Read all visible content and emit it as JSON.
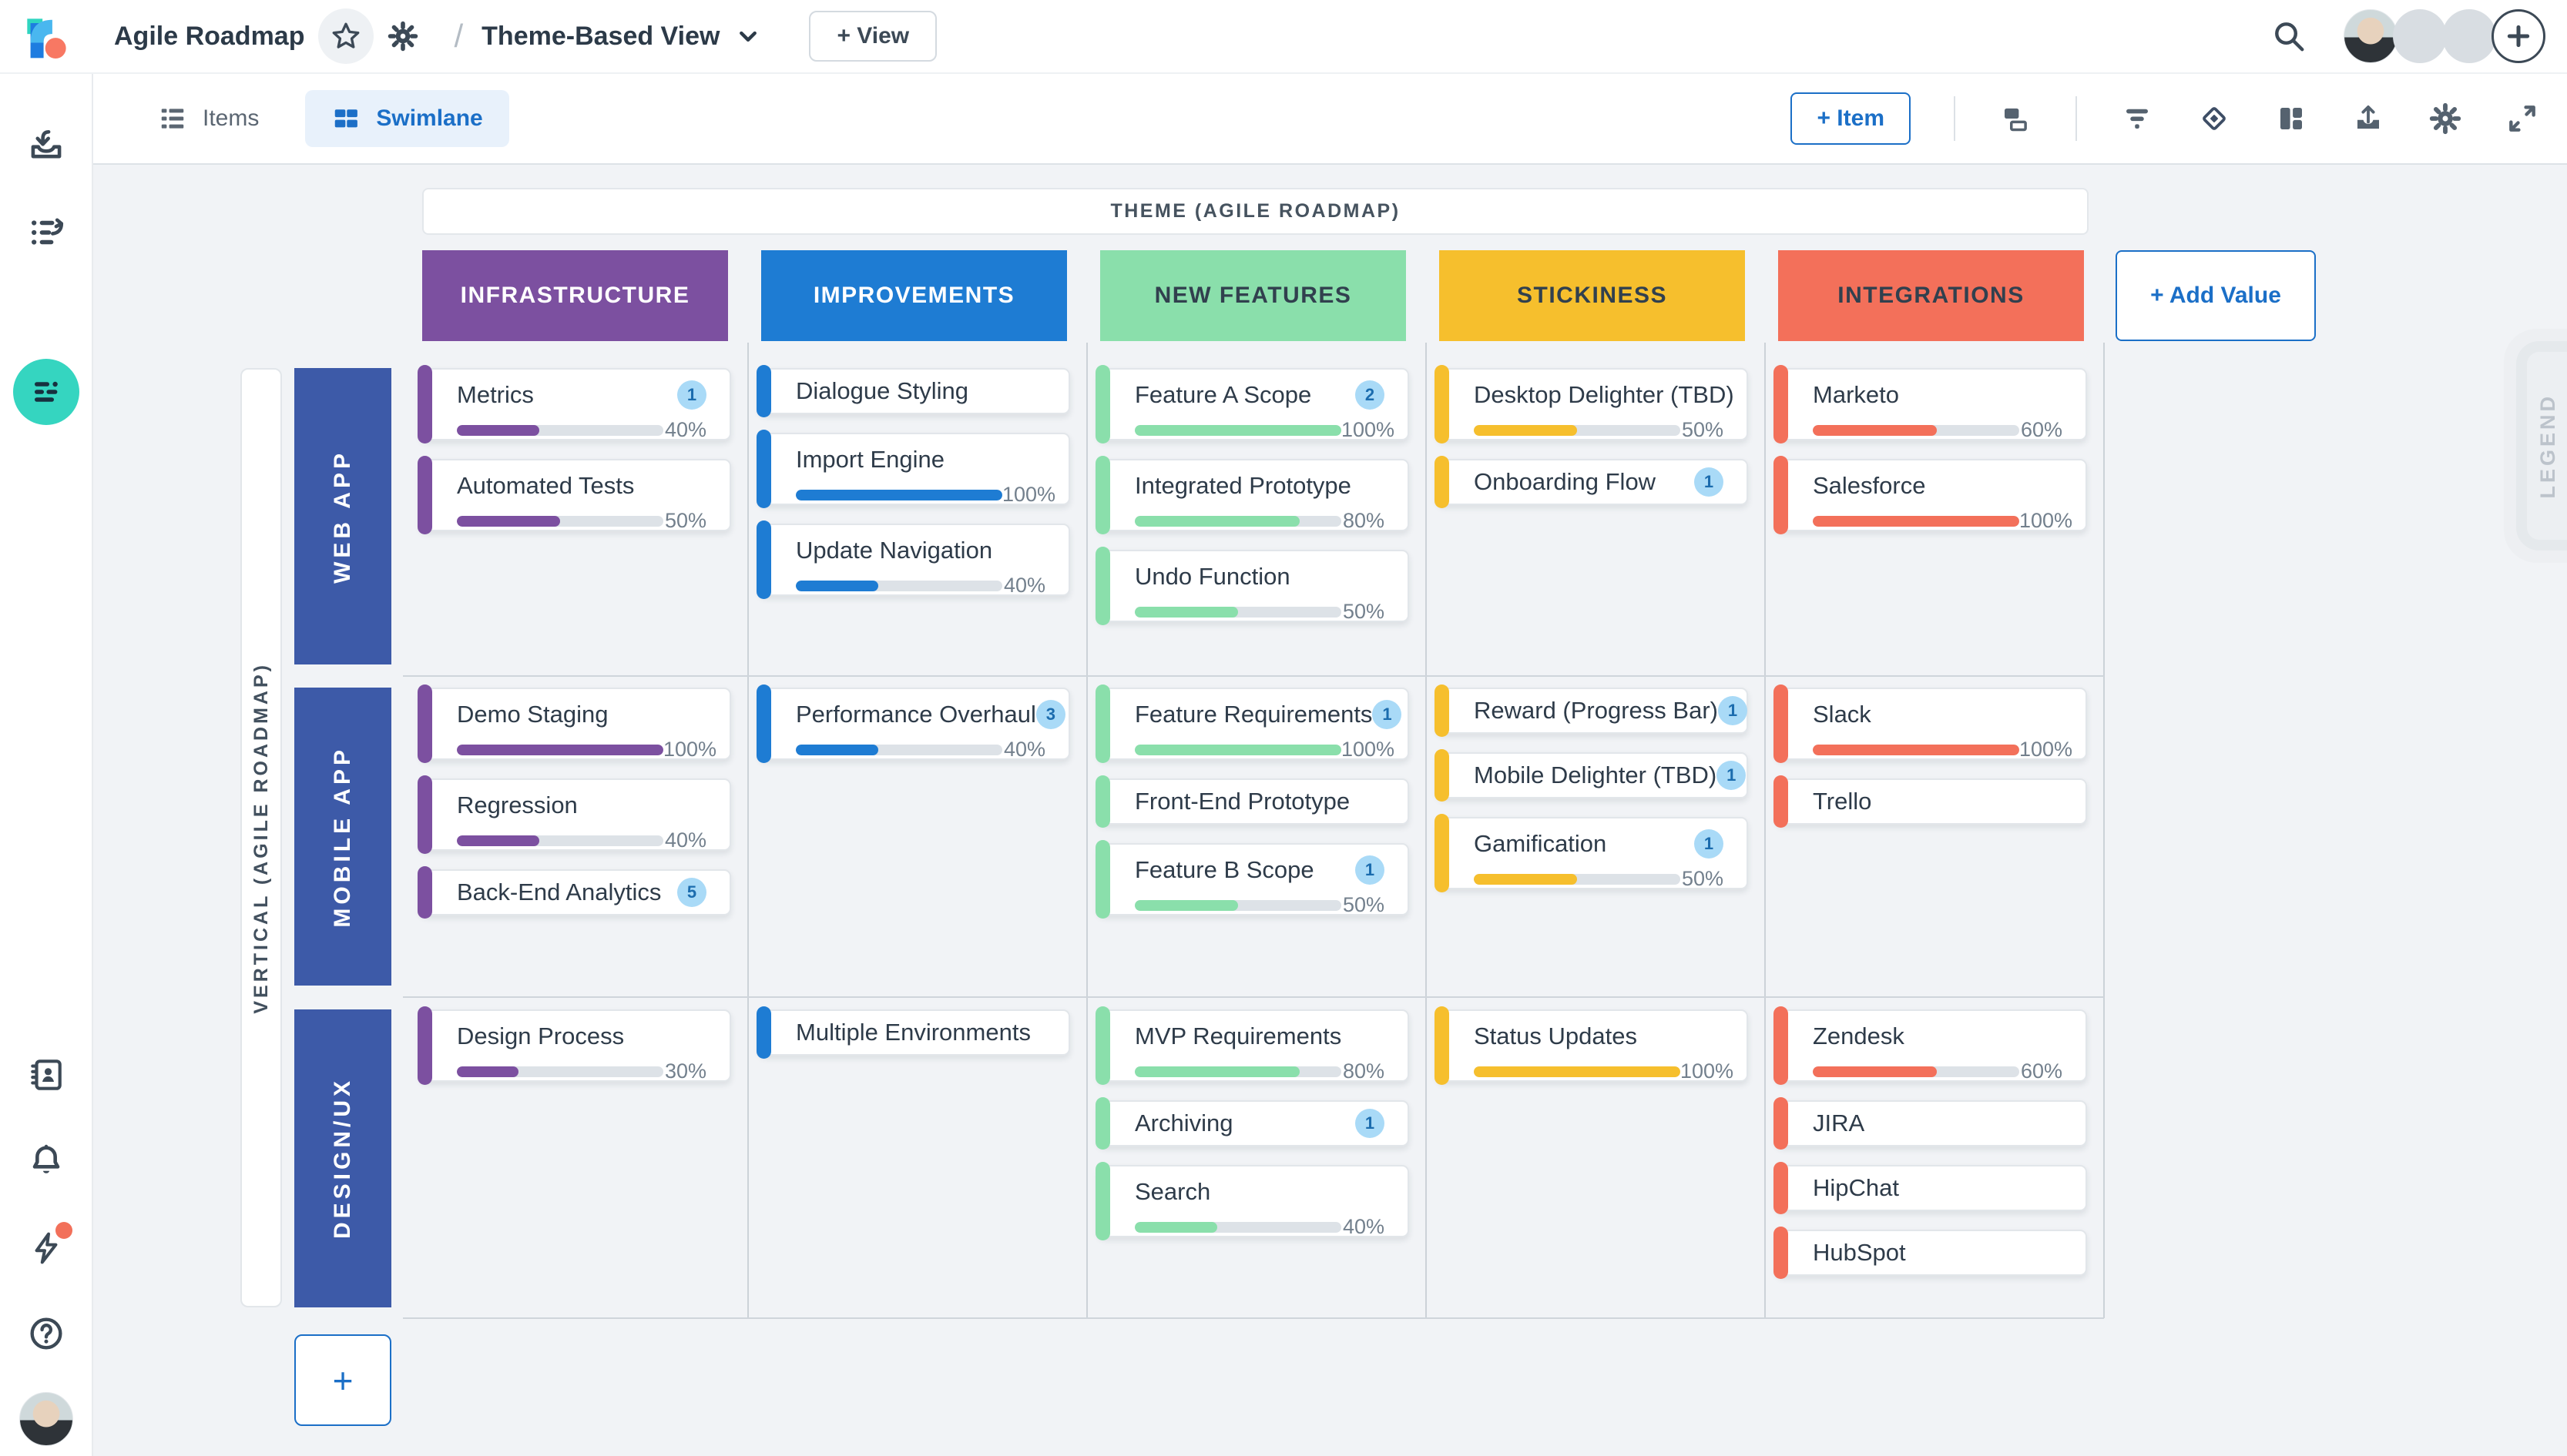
{
  "header": {
    "roadmap_title": "Agile Roadmap",
    "separator": "/",
    "view_name": "Theme-Based View",
    "add_view_label": "+ View",
    "icons": [
      "favorite-star-icon",
      "roadmap-settings-gear-icon",
      "chevron-down-icon",
      "search-icon",
      "add-collaborator-plus-icon"
    ],
    "avatar_group": {
      "photo_avatars": 1,
      "empty_avatars": 2,
      "add_label": "+"
    }
  },
  "sidebar": {
    "icons": [
      {
        "name": "import-icon",
        "active": false
      },
      {
        "name": "history-list-icon",
        "active": false
      },
      {
        "name": "swimlane-view-icon",
        "active": true,
        "active_bg": "#35d5c0"
      },
      {
        "name": "contacts-book-icon",
        "active": false
      },
      {
        "name": "notifications-bell-icon",
        "active": false
      },
      {
        "name": "whats-new-lightning-icon",
        "active": false,
        "has_alert_dot": true
      },
      {
        "name": "help-icon",
        "active": false
      },
      {
        "name": "user-avatar",
        "active": false
      }
    ]
  },
  "toolbar": {
    "tabs": [
      {
        "label": "Items",
        "icon": "list-icon",
        "active": false
      },
      {
        "label": "Swimlane",
        "icon": "grid-icon",
        "active": true
      }
    ],
    "add_item_label": "+ Item",
    "icons": [
      "card-layout-icon",
      "filter-icon",
      "milestone-diamond-icon",
      "layout-columns-icon",
      "export-icon",
      "settings-gear-icon",
      "expand-icon"
    ]
  },
  "board": {
    "theme_header": "THEME (AGILE ROADMAP)",
    "row_axis_label": "VERTICAL (AGILE ROADMAP)",
    "legend_label": "LEGEND",
    "add_value_label": "+ Add Value",
    "add_row_label": "+",
    "row_color": "#3d5aa8",
    "columns": [
      {
        "label": "INFRASTRUCTURE",
        "color": "#7c50a0",
        "text": "#ffffff"
      },
      {
        "label": "IMPROVEMENTS",
        "color": "#1e7cd3",
        "text": "#ffffff"
      },
      {
        "label": "NEW FEATURES",
        "color": "#8adfab",
        "text": "#31404e"
      },
      {
        "label": "STICKINESS",
        "color": "#f6bf2d",
        "text": "#31404e"
      },
      {
        "label": "INTEGRATIONS",
        "color": "#f3705a",
        "text": "#31404e"
      }
    ],
    "rows": [
      "WEB APP",
      "MOBILE APP",
      "DESIGN/UX"
    ],
    "cards": [
      {
        "row": 0,
        "col": 0,
        "title": "Metrics",
        "badge": "1",
        "percent": "40%",
        "value": 40
      },
      {
        "row": 0,
        "col": 0,
        "title": "Automated Tests",
        "percent": "50%",
        "value": 50
      },
      {
        "row": 0,
        "col": 1,
        "title": "Dialogue Styling"
      },
      {
        "row": 0,
        "col": 1,
        "title": "Import Engine",
        "percent": "100%",
        "value": 100
      },
      {
        "row": 0,
        "col": 1,
        "title": "Update Navigation",
        "percent": "40%",
        "value": 40
      },
      {
        "row": 0,
        "col": 2,
        "title": "Feature A Scope",
        "badge": "2",
        "percent": "100%",
        "value": 100
      },
      {
        "row": 0,
        "col": 2,
        "title": "Integrated Prototype",
        "percent": "80%",
        "value": 80
      },
      {
        "row": 0,
        "col": 2,
        "title": "Undo Function",
        "percent": "50%",
        "value": 50
      },
      {
        "row": 0,
        "col": 3,
        "title": "Desktop Delighter (TBD)",
        "percent": "50%",
        "value": 50
      },
      {
        "row": 0,
        "col": 3,
        "title": "Onboarding Flow",
        "badge": "1"
      },
      {
        "row": 0,
        "col": 4,
        "title": "Marketo",
        "percent": "60%",
        "value": 60
      },
      {
        "row": 0,
        "col": 4,
        "title": "Salesforce",
        "percent": "100%",
        "value": 100
      },
      {
        "row": 1,
        "col": 0,
        "title": "Demo Staging",
        "percent": "100%",
        "value": 100
      },
      {
        "row": 1,
        "col": 0,
        "title": "Regression",
        "percent": "40%",
        "value": 40
      },
      {
        "row": 1,
        "col": 0,
        "title": "Back-End Analytics",
        "badge": "5"
      },
      {
        "row": 1,
        "col": 1,
        "title": "Performance Overhaul",
        "badge": "3",
        "percent": "40%",
        "value": 40
      },
      {
        "row": 1,
        "col": 2,
        "title": "Feature Requirements",
        "badge": "1",
        "percent": "100%",
        "value": 100
      },
      {
        "row": 1,
        "col": 2,
        "title": "Front-End Prototype"
      },
      {
        "row": 1,
        "col": 2,
        "title": "Feature B Scope",
        "badge": "1",
        "percent": "50%",
        "value": 50
      },
      {
        "row": 1,
        "col": 3,
        "title": "Reward (Progress Bar)",
        "badge": "1"
      },
      {
        "row": 1,
        "col": 3,
        "title": "Mobile Delighter (TBD)",
        "badge": "1"
      },
      {
        "row": 1,
        "col": 3,
        "title": "Gamification",
        "badge": "1",
        "percent": "50%",
        "value": 50
      },
      {
        "row": 1,
        "col": 4,
        "title": "Slack",
        "percent": "100%",
        "value": 100
      },
      {
        "row": 1,
        "col": 4,
        "title": "Trello"
      },
      {
        "row": 2,
        "col": 0,
        "title": "Design Process",
        "percent": "30%",
        "value": 30
      },
      {
        "row": 2,
        "col": 1,
        "title": "Multiple Environments"
      },
      {
        "row": 2,
        "col": 2,
        "title": "MVP Requirements",
        "percent": "80%",
        "value": 80
      },
      {
        "row": 2,
        "col": 2,
        "title": "Archiving",
        "badge": "1"
      },
      {
        "row": 2,
        "col": 2,
        "title": "Search",
        "percent": "40%",
        "value": 40
      },
      {
        "row": 2,
        "col": 3,
        "title": "Status Updates",
        "percent": "100%",
        "value": 100
      },
      {
        "row": 2,
        "col": 4,
        "title": "Zendesk",
        "percent": "60%",
        "value": 60
      },
      {
        "row": 2,
        "col": 4,
        "title": "JIRA"
      },
      {
        "row": 2,
        "col": 4,
        "title": "HipChat"
      },
      {
        "row": 2,
        "col": 4,
        "title": "HubSpot"
      }
    ]
  },
  "colors": {
    "canvas_bg": "#f1f3f6",
    "accent_blue": "#1b6fc7",
    "row_block": "#3d5aa8",
    "sidebar_active": "#35d5c0",
    "badge_bg": "#a9daf7",
    "badge_text": "#1b6cae",
    "progress_track": "#dde2e7",
    "alert_dot": "#f2705a",
    "grid_line": "#ccd2d8"
  }
}
